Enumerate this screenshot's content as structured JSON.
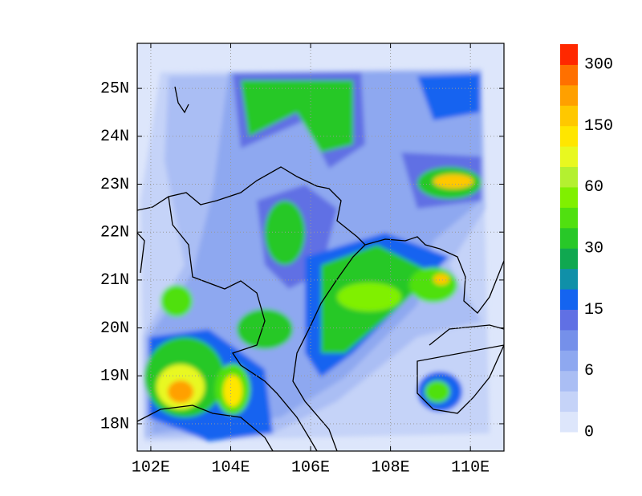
{
  "map_data": {
    "xlim": [
      101.66,
      110.84
    ],
    "ylim": [
      17.43,
      25.94
    ],
    "xticks": [
      {
        "value": 102,
        "label": "102E"
      },
      {
        "value": 104,
        "label": "104E"
      },
      {
        "value": 106,
        "label": "106E"
      },
      {
        "value": 108,
        "label": "108E"
      },
      {
        "value": 110,
        "label": "110E"
      }
    ],
    "yticks": [
      {
        "value": 18,
        "label": "18N"
      },
      {
        "value": 19,
        "label": "19N"
      },
      {
        "value": 20,
        "label": "20N"
      },
      {
        "value": 21,
        "label": "21N"
      },
      {
        "value": 22,
        "label": "22N"
      },
      {
        "value": 23,
        "label": "23N"
      },
      {
        "value": 24,
        "label": "24N"
      },
      {
        "value": 25,
        "label": "25N"
      }
    ],
    "grid": true,
    "colorbar": {
      "colors": [
        "#dde6fb",
        "#c5d3f8",
        "#aabef4",
        "#8ea8f0",
        "#7590ea",
        "#6070e4",
        "#1464f0",
        "#1090a8",
        "#10a850",
        "#28c828",
        "#50e010",
        "#80f000",
        "#b4f030",
        "#e8f820",
        "#ffe600",
        "#ffc800",
        "#ffa000",
        "#ff7000",
        "#ff2800"
      ],
      "ticks": [
        0,
        6,
        15,
        30,
        60,
        150,
        300
      ]
    }
  }
}
